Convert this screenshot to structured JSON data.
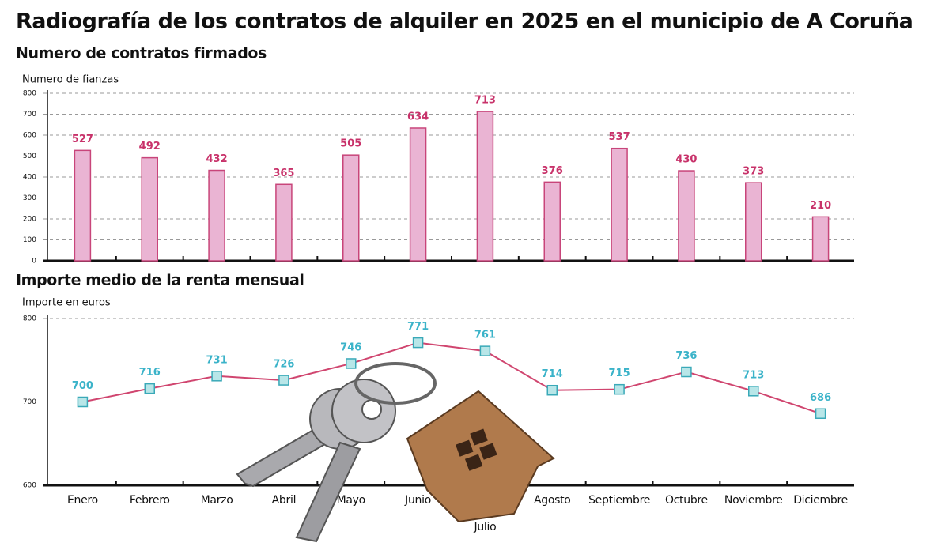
{
  "title": "Radiografía de los contratos de alquiler en 2025 en el municipio de A Coruña",
  "chart_data": [
    {
      "type": "bar",
      "title": "Numero de contratos firmados",
      "y_label": "Numero de fianzas",
      "categories": [
        null,
        null,
        null,
        null,
        null,
        null,
        null,
        null,
        null,
        null,
        null,
        null
      ],
      "values": [
        527,
        492,
        432,
        365,
        505,
        634,
        713,
        376,
        537,
        430,
        373,
        210
      ],
      "color": "#eab4d3",
      "edge_color": "#c8457a",
      "label_color": "#c8326a",
      "ylim": [
        0,
        800
      ],
      "yticks": [
        0,
        100,
        200,
        300,
        400,
        500,
        600,
        700,
        800
      ],
      "grid": true
    },
    {
      "type": "line",
      "title": "Importe medio de la renta mensual",
      "y_label": "Importe en euros",
      "categories": [
        "Enero",
        "Febrero",
        "Marzo",
        "Abril",
        "Mayo",
        "Junio",
        "Julio",
        "Agosto",
        "Septiembre",
        "Octubre",
        "Noviembre",
        "Diciembre"
      ],
      "values": [
        700,
        716,
        731,
        726,
        746,
        771,
        761,
        714,
        715,
        736,
        713,
        686
      ],
      "color": "#d0456f",
      "marker_color": "#b8e6e8",
      "marker_edge": "#3aa9b8",
      "label_color": "#3bb3c9",
      "ylim": [
        600,
        800
      ],
      "yticks": [
        600,
        700,
        800
      ],
      "grid": true
    }
  ]
}
